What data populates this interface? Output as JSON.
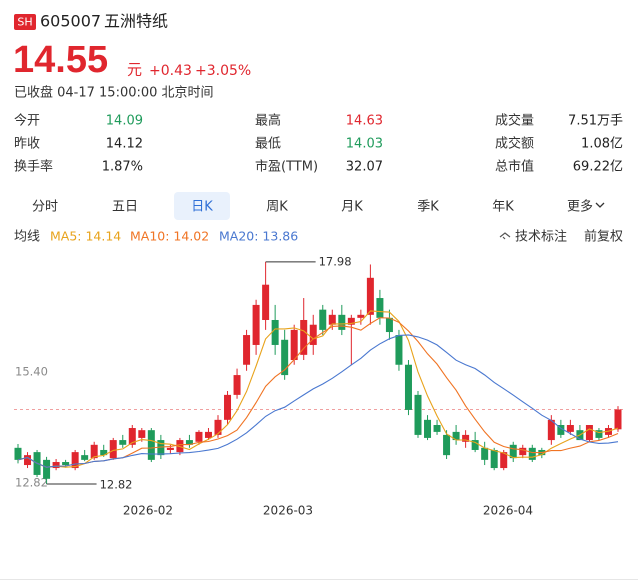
{
  "header": {
    "badge": "SH",
    "code": "605007",
    "name": "五洲特纸",
    "price": "14.55",
    "unit": "元",
    "change": "+0.43",
    "change_pct": "+3.05%",
    "status": "已收盘 04-17 15:00:00 北京时间"
  },
  "stats": [
    [
      {
        "label": "今开",
        "value": "14.09",
        "tone": "down"
      },
      {
        "label": "最高",
        "value": "14.63",
        "tone": "up"
      },
      {
        "label": "成交量",
        "value": "7.51万手",
        "tone": "flat"
      }
    ],
    [
      {
        "label": "昨收",
        "value": "14.12",
        "tone": "flat"
      },
      {
        "label": "最低",
        "value": "14.03",
        "tone": "down"
      },
      {
        "label": "成交额",
        "value": "1.08亿",
        "tone": "flat"
      }
    ],
    [
      {
        "label": "换手率",
        "value": "1.87%",
        "tone": "flat"
      },
      {
        "label": "市盈(TTM)",
        "value": "32.07",
        "tone": "flat"
      },
      {
        "label": "总市值",
        "value": "69.22亿",
        "tone": "flat"
      }
    ]
  ],
  "tabs": [
    "分时",
    "五日",
    "日K",
    "周K",
    "月K",
    "季K",
    "年K",
    "更多"
  ],
  "active_tab": 2,
  "indicator_bar": {
    "title": "均线",
    "lines": [
      {
        "label": "MA5: 14.14",
        "period": 5,
        "color": "#e8a31c"
      },
      {
        "label": "MA10: 14.02",
        "period": 10,
        "color": "#f07424"
      },
      {
        "label": "MA20: 13.86",
        "period": 20,
        "color": "#4a78d0"
      }
    ],
    "tools": [
      "技术标注",
      "前复权"
    ]
  },
  "chart": {
    "type": "candlestick",
    "up_color": "#e0262e",
    "down_color": "#1f9b5b",
    "ylim": [
      12.68,
      18.14
    ],
    "yticks": [
      {
        "value": 15.4,
        "label": "15.40"
      },
      {
        "value": 12.82,
        "label": "12.82"
      }
    ],
    "xticks": [
      "2026-02",
      "2026-03",
      "2026-04"
    ],
    "annotations": {
      "high": "17.98",
      "low": "12.82"
    },
    "candles": [
      [
        13.66,
        13.75,
        13.3,
        13.38
      ],
      [
        13.26,
        13.56,
        13.19,
        13.49
      ],
      [
        13.56,
        13.61,
        12.98,
        13.03
      ],
      [
        13.38,
        13.45,
        12.82,
        12.94
      ],
      [
        13.19,
        13.4,
        13.14,
        13.33
      ],
      [
        13.33,
        13.38,
        13.2,
        13.26
      ],
      [
        13.19,
        13.61,
        13.14,
        13.56
      ],
      [
        13.49,
        13.61,
        13.35,
        13.38
      ],
      [
        13.42,
        13.8,
        13.38,
        13.73
      ],
      [
        13.61,
        13.73,
        13.45,
        13.49
      ],
      [
        13.42,
        13.89,
        13.38,
        13.84
      ],
      [
        13.84,
        13.96,
        13.66,
        13.73
      ],
      [
        13.73,
        14.19,
        13.66,
        14.12
      ],
      [
        13.89,
        14.12,
        13.8,
        14.07
      ],
      [
        14.07,
        14.12,
        13.33,
        13.38
      ],
      [
        13.84,
        13.96,
        13.4,
        13.49
      ],
      [
        13.61,
        13.73,
        13.52,
        13.66
      ],
      [
        13.56,
        13.89,
        13.49,
        13.84
      ],
      [
        13.84,
        13.96,
        13.66,
        13.73
      ],
      [
        13.8,
        14.07,
        13.73,
        14.03
      ],
      [
        13.89,
        14.12,
        13.84,
        14.03
      ],
      [
        13.96,
        14.42,
        13.89,
        14.31
      ],
      [
        14.31,
        14.98,
        14.19,
        14.89
      ],
      [
        14.89,
        15.5,
        14.8,
        15.35
      ],
      [
        15.59,
        16.4,
        15.45,
        16.28
      ],
      [
        16.05,
        17.1,
        15.82,
        16.98
      ],
      [
        16.63,
        17.98,
        16.4,
        17.45
      ],
      [
        16.63,
        16.98,
        15.82,
        16.05
      ],
      [
        16.17,
        16.4,
        15.24,
        15.35
      ],
      [
        15.7,
        16.52,
        15.59,
        16.4
      ],
      [
        15.82,
        17.14,
        15.7,
        16.63
      ],
      [
        16.05,
        16.75,
        15.82,
        16.52
      ],
      [
        16.87,
        16.98,
        16.28,
        16.4
      ],
      [
        16.52,
        16.87,
        16.4,
        16.75
      ],
      [
        16.75,
        16.98,
        16.28,
        16.4
      ],
      [
        16.52,
        16.75,
        15.59,
        16.68
      ],
      [
        16.68,
        16.87,
        16.52,
        16.75
      ],
      [
        16.75,
        17.92,
        16.52,
        17.61
      ],
      [
        17.14,
        17.33,
        16.52,
        16.68
      ],
      [
        16.68,
        16.87,
        16.17,
        16.35
      ],
      [
        16.28,
        16.4,
        15.45,
        15.59
      ],
      [
        15.59,
        15.7,
        14.42,
        14.54
      ],
      [
        14.89,
        14.98,
        13.89,
        13.96
      ],
      [
        14.31,
        14.42,
        13.84,
        13.89
      ],
      [
        14.19,
        14.31,
        13.96,
        14.03
      ],
      [
        13.96,
        14.07,
        13.4,
        13.49
      ],
      [
        14.03,
        14.19,
        13.73,
        13.84
      ],
      [
        13.8,
        14.07,
        13.66,
        13.96
      ],
      [
        13.84,
        14.03,
        13.56,
        13.61
      ],
      [
        13.66,
        13.8,
        13.26,
        13.38
      ],
      [
        13.61,
        13.66,
        13.14,
        13.19
      ],
      [
        13.19,
        13.61,
        13.14,
        13.56
      ],
      [
        13.73,
        13.8,
        13.33,
        13.42
      ],
      [
        13.49,
        13.73,
        13.42,
        13.66
      ],
      [
        13.66,
        13.73,
        13.33,
        13.38
      ],
      [
        13.61,
        13.66,
        13.42,
        13.49
      ],
      [
        13.84,
        14.42,
        13.73,
        14.31
      ],
      [
        14.19,
        14.31,
        13.89,
        13.96
      ],
      [
        14.03,
        14.31,
        13.96,
        14.19
      ],
      [
        14.07,
        14.19,
        13.84,
        13.84
      ],
      [
        13.84,
        14.19,
        13.8,
        14.19
      ],
      [
        14.07,
        14.12,
        13.84,
        13.89
      ],
      [
        13.96,
        14.19,
        13.89,
        14.12
      ],
      [
        14.09,
        14.63,
        14.03,
        14.55
      ]
    ]
  }
}
